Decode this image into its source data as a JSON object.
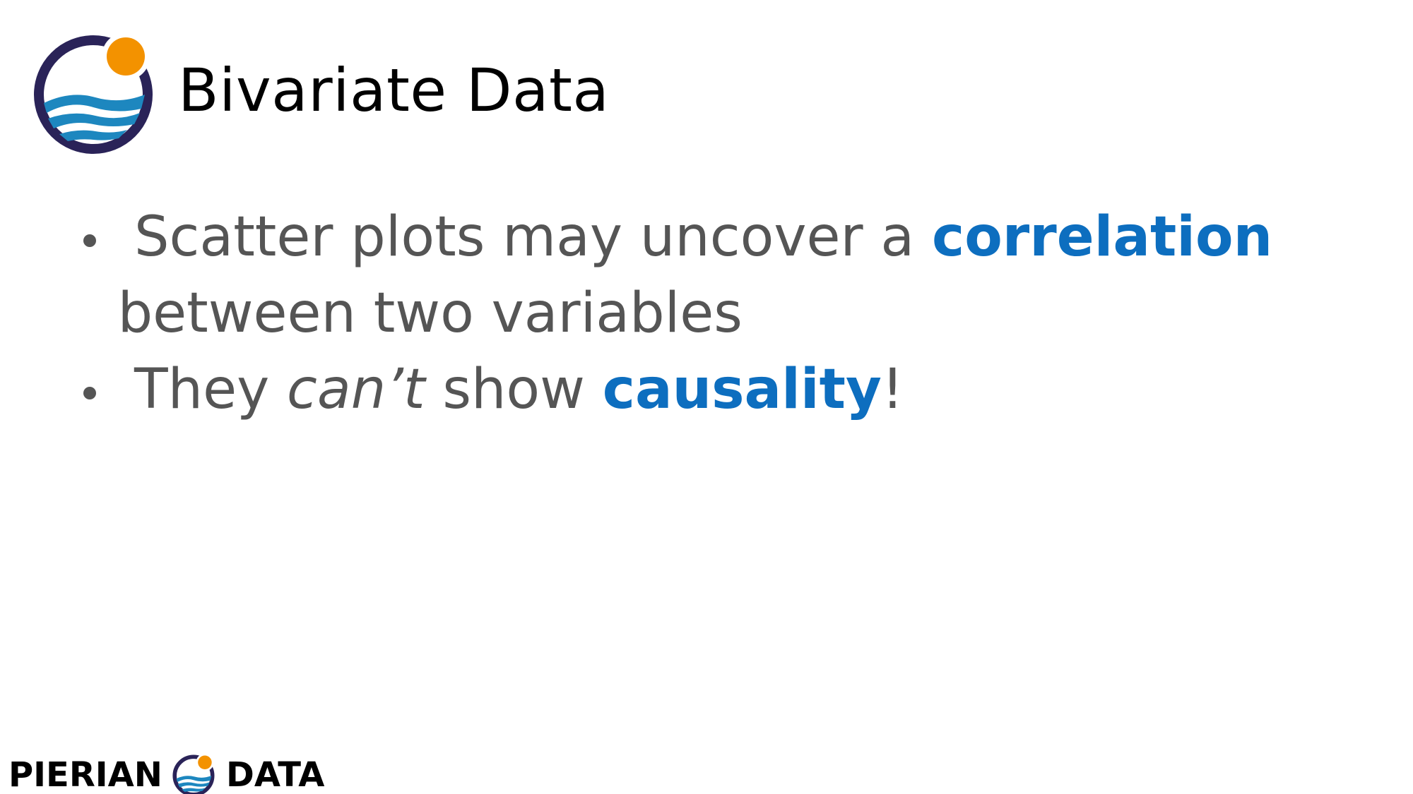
{
  "slide": {
    "title": "Bivariate Data",
    "bullets": [
      {
        "parts": [
          {
            "text": "Scatter plots may uncover a ",
            "style": "normal"
          },
          {
            "text": "correlation",
            "style": "highlight"
          },
          {
            "text": " between two variables",
            "style": "normal"
          }
        ]
      },
      {
        "parts": [
          {
            "text": "They ",
            "style": "normal"
          },
          {
            "text": "can’t",
            "style": "italic"
          },
          {
            "text": " show ",
            "style": "normal"
          },
          {
            "text": "causality",
            "style": "highlight"
          },
          {
            "text": "!",
            "style": "normal"
          }
        ]
      }
    ]
  },
  "footer": {
    "brand_left": "PIERIAN",
    "brand_right": "DATA"
  },
  "colors": {
    "highlight": "#0d6ebf",
    "body_text": "#555555",
    "title_text": "#000000",
    "logo_ring": "#2a2358",
    "logo_sun": "#f39200",
    "logo_wave": "#1d87bf"
  },
  "icons": {
    "main_logo": "pierian-data-logo-icon",
    "footer_logo": "pierian-data-logo-icon"
  }
}
